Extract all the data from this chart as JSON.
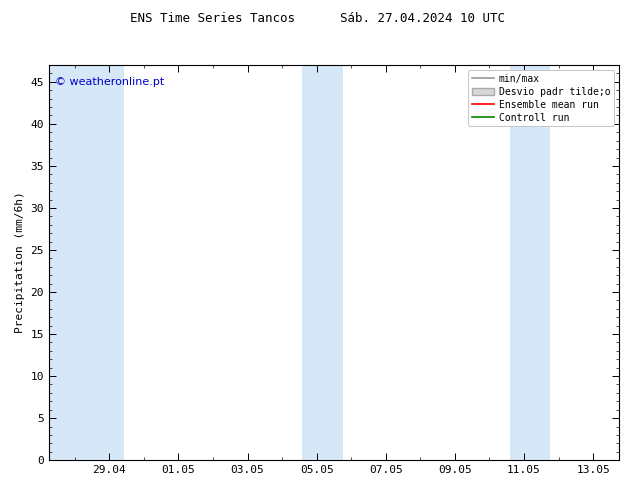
{
  "title": "ENS Time Series Tancos      Sáb. 27.04.2024 10 UTC",
  "ylabel": "Precipitation (mm/6h)",
  "ylim": [
    0,
    47
  ],
  "yticks": [
    0,
    5,
    10,
    15,
    20,
    25,
    30,
    35,
    40,
    45
  ],
  "xtick_labels": [
    "29.04",
    "01.05",
    "03.05",
    "05.05",
    "07.05",
    "09.05",
    "11.05",
    "13.05"
  ],
  "shaded_color": "#d6e8f7",
  "background_color": "#ffffff",
  "border_color": "#000000",
  "watermark": "© weatheronline.pt",
  "watermark_color": "#0000cc",
  "legend_items": [
    {
      "label": "min/max",
      "color": "#999999",
      "lw": 1.2
    },
    {
      "label": "Desvio padr tilde;o",
      "color": "#cccccc",
      "lw": 6
    },
    {
      "label": "Ensemble mean run",
      "color": "#ff0000",
      "lw": 1.2
    },
    {
      "label": "Controll run",
      "color": "#008000",
      "lw": 1.2
    }
  ],
  "title_fontsize": 9,
  "tick_fontsize": 8,
  "ylabel_fontsize": 8,
  "watermark_fontsize": 8,
  "legend_fontsize": 7
}
